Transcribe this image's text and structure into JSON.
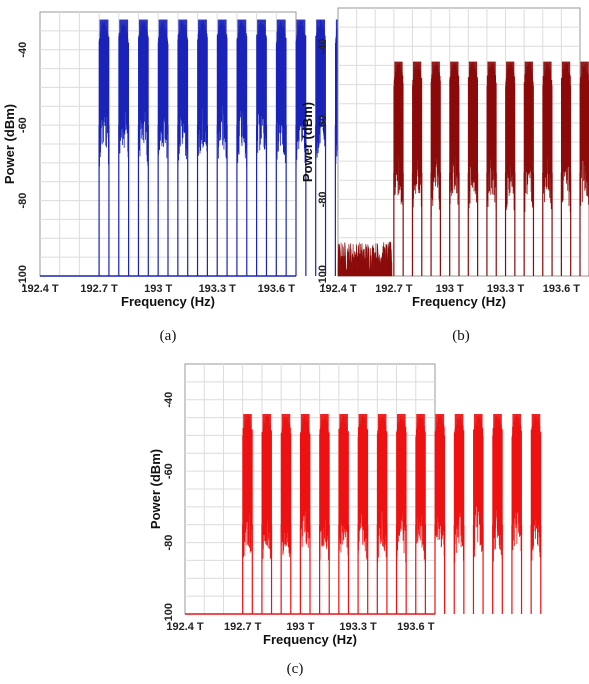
{
  "chart_data": [
    {
      "type": "line",
      "caption": "(a)",
      "xlabel": "Frequency (Hz)",
      "ylabel": "Power (dBm)",
      "xlim": [
        192.4,
        193.7
      ],
      "ylim": [
        -100,
        -30
      ],
      "xticks": [
        192.4,
        192.7,
        193.0,
        193.3,
        193.6
      ],
      "xtick_labels": [
        "192.4 T",
        "192.7 T",
        "193 T",
        "193.3 T",
        "193.6 T"
      ],
      "yticks": [
        -40,
        -60,
        -80,
        -100
      ],
      "ytick_labels": [
        "-40",
        "-60",
        "-80",
        "-100"
      ],
      "grid": true,
      "color": "#1a23b8",
      "channels": {
        "count": 16,
        "start": 192.7,
        "spacing": 0.1,
        "width": 0.05
      },
      "peak_power": -32,
      "mid_power": -60,
      "floor_power": -100,
      "noise_floor": null
    },
    {
      "type": "line",
      "caption": "(b)",
      "xlabel": "Frequency (Hz)",
      "ylabel": "Power (dBm)",
      "xlim": [
        192.4,
        193.7
      ],
      "ylim": [
        -100,
        -30
      ],
      "xticks": [
        192.4,
        192.7,
        193.0,
        193.3,
        193.6
      ],
      "xtick_labels": [
        "192.4 T",
        "192.7 T",
        "193 T",
        "193.3 T",
        "193.6 T"
      ],
      "yticks": [
        -40,
        -60,
        -80,
        -100
      ],
      "ytick_labels": [
        "-40",
        "-60",
        "-80",
        "-100"
      ],
      "grid": true,
      "color": "#8b0a0a",
      "channels": {
        "count": 16,
        "start": 192.7,
        "spacing": 0.1,
        "width": 0.05
      },
      "peak_power": -44,
      "mid_power": -73,
      "floor_power": -100,
      "noise_floor": -95
    },
    {
      "type": "line",
      "caption": "(c)",
      "xlabel": "Frequency (Hz)",
      "ylabel": "Power (dBm)",
      "xlim": [
        192.4,
        193.7
      ],
      "ylim": [
        -100,
        -30
      ],
      "xticks": [
        192.4,
        192.7,
        193.0,
        193.3,
        193.6
      ],
      "xtick_labels": [
        "192.4 T",
        "192.7 T",
        "193 T",
        "193.3 T",
        "193.6 T"
      ],
      "yticks": [
        -40,
        -60,
        -80,
        -100
      ],
      "ytick_labels": [
        "-40",
        "-60",
        "-80",
        "-100"
      ],
      "grid": true,
      "color": "#ee1111",
      "channels": {
        "count": 16,
        "start": 192.7,
        "spacing": 0.1,
        "width": 0.05
      },
      "peak_power": -44,
      "mid_power": -75,
      "floor_power": -100,
      "noise_floor": null
    }
  ]
}
